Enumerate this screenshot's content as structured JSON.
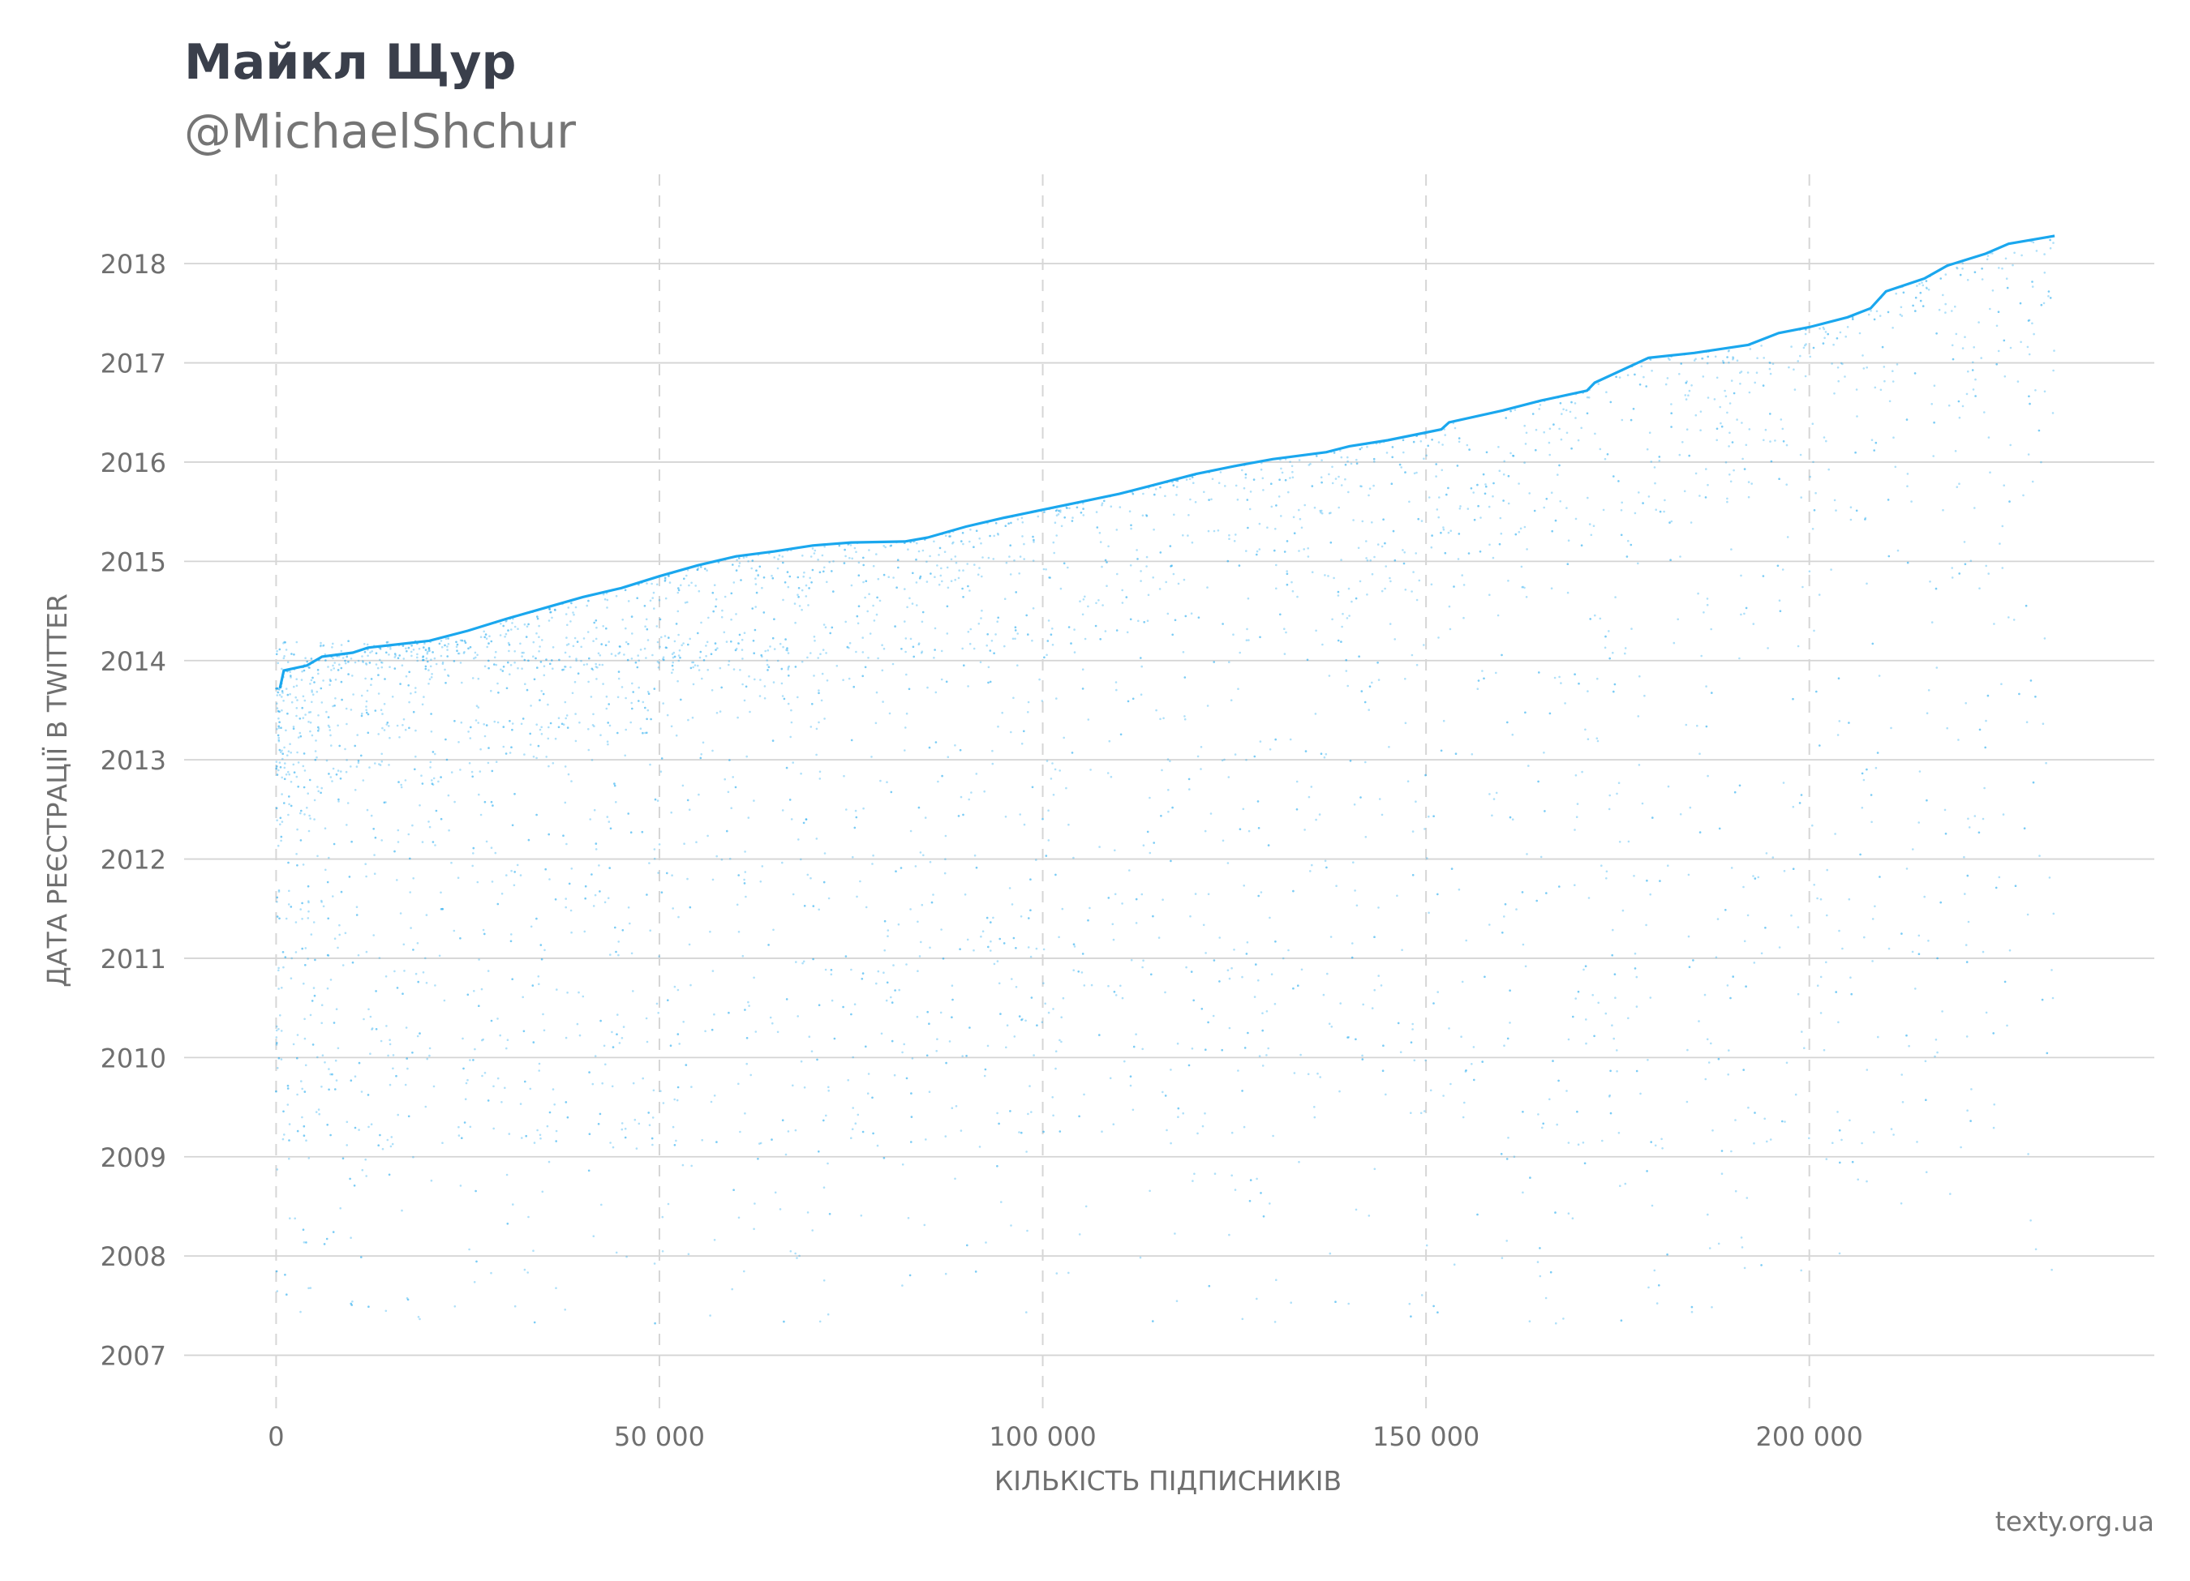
{
  "header": {
    "title": "Майкл Щур",
    "subtitle": "@MichaelShchur"
  },
  "footer": {
    "source": "texty.org.ua"
  },
  "colors": {
    "series": "#1aa7ee",
    "title": "#3a3f4b",
    "muted": "#757575",
    "grid": "#d4d4d4"
  },
  "chart_data": {
    "type": "scatter",
    "xlabel": "КІЛЬКІСТЬ ПІДПИСНИКІВ",
    "ylabel": "ДАТА РЕЄСТРАЦІЇ В TWITTER",
    "xlim": [
      -12000,
      245000
    ],
    "ylim": [
      2006.4,
      2018.9
    ],
    "x_ticks": [
      0,
      50000,
      100000,
      150000,
      200000
    ],
    "x_tick_labels": [
      "0",
      "50 000",
      "100 000",
      "150 000",
      "200 000"
    ],
    "y_ticks": [
      2007,
      2008,
      2009,
      2010,
      2011,
      2012,
      2013,
      2014,
      2015,
      2016,
      2017,
      2018
    ],
    "y_tick_labels": [
      "2007",
      "2008",
      "2009",
      "2010",
      "2011",
      "2012",
      "2013",
      "2014",
      "2015",
      "2016",
      "2017",
      "2018"
    ],
    "grid": {
      "x": "dashed",
      "y": "solid"
    },
    "legend": "none",
    "series": [
      {
        "frontier": [
          [
            500,
            2013.72
          ],
          [
            1000,
            2013.9
          ],
          [
            4000,
            2013.95
          ],
          [
            6000,
            2014.04
          ],
          [
            10000,
            2014.08
          ],
          [
            12000,
            2014.13
          ],
          [
            20000,
            2014.2
          ],
          [
            25000,
            2014.3
          ],
          [
            30000,
            2014.42
          ],
          [
            35000,
            2014.53
          ],
          [
            40000,
            2014.64
          ],
          [
            45000,
            2014.73
          ],
          [
            50000,
            2014.85
          ],
          [
            55000,
            2014.96
          ],
          [
            60000,
            2015.05
          ],
          [
            65000,
            2015.1
          ],
          [
            70000,
            2015.16
          ],
          [
            75000,
            2015.19
          ],
          [
            82000,
            2015.2
          ],
          [
            85000,
            2015.24
          ],
          [
            90000,
            2015.35
          ],
          [
            95000,
            2015.44
          ],
          [
            100000,
            2015.52
          ],
          [
            105000,
            2015.6
          ],
          [
            110000,
            2015.68
          ],
          [
            115000,
            2015.78
          ],
          [
            120000,
            2015.88
          ],
          [
            125000,
            2015.96
          ],
          [
            130000,
            2016.03
          ],
          [
            137000,
            2016.1
          ],
          [
            140000,
            2016.16
          ],
          [
            145000,
            2016.22
          ],
          [
            152000,
            2016.33
          ],
          [
            153000,
            2016.4
          ],
          [
            160000,
            2016.52
          ],
          [
            165000,
            2016.62
          ],
          [
            171000,
            2016.72
          ],
          [
            172000,
            2016.8
          ],
          [
            179000,
            2017.05
          ],
          [
            185000,
            2017.1
          ],
          [
            192000,
            2017.18
          ],
          [
            196000,
            2017.3
          ],
          [
            200000,
            2017.36
          ],
          [
            205000,
            2017.46
          ],
          [
            208000,
            2017.55
          ],
          [
            210000,
            2017.72
          ],
          [
            215000,
            2017.85
          ],
          [
            218000,
            2017.98
          ],
          [
            223000,
            2018.1
          ],
          [
            226000,
            2018.2
          ],
          [
            232000,
            2018.28
          ]
        ]
      }
    ]
  }
}
